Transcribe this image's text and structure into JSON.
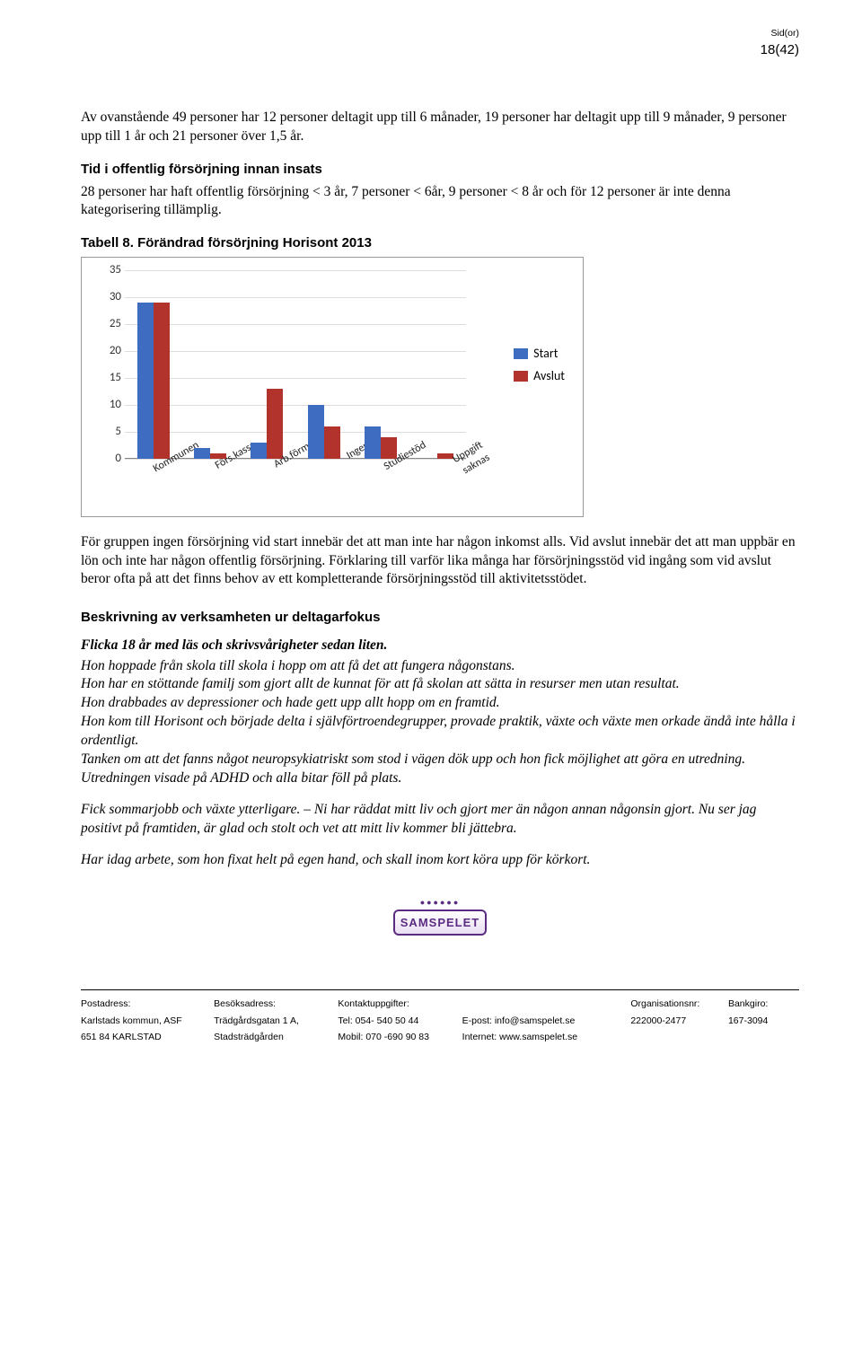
{
  "header": {
    "sidor_label": "Sid(or)",
    "page_num": "18(42)"
  },
  "p1": "Av ovanstående 49 personer har 12 personer deltagit upp till 6 månader, 19 personer har deltagit upp till 9 månader, 9 personer upp till 1 år och 21 personer över 1,5 år.",
  "h1": "Tid i offentlig försörjning innan insats",
  "p2": "28 personer har haft offentlig försörjning < 3 år, 7 personer < 6år, 9 personer < 8 år och för 12 personer är inte denna kategorisering tillämplig.",
  "table_title": "Tabell 8. Förändrad försörjning Horisont 2013",
  "chart": {
    "yticks": [
      0,
      5,
      10,
      15,
      20,
      25,
      30,
      35
    ],
    "ymax": 35,
    "categories": [
      "Kommunen",
      "Förs.kassa",
      "Arb.förm.",
      "Ingen",
      "Studiestöd",
      "Uppgift saknas"
    ],
    "start": [
      29,
      2,
      3,
      10,
      6,
      0
    ],
    "avslut": [
      29,
      1,
      13,
      6,
      4,
      1
    ],
    "colors": {
      "start": "#3d6cc0",
      "avslut": "#b2322c",
      "grid": "#dddddd",
      "border": "#999999"
    },
    "legend": {
      "start": "Start",
      "avslut": "Avslut"
    }
  },
  "p3": "För gruppen ingen försörjning vid start innebär det att man inte har någon inkomst alls. Vid avslut innebär det att man uppbär en lön och inte har någon offentlig försörjning. Förklaring till varför lika många har försörjningsstöd vid ingång som vid avslut beror ofta på att det finns behov av ett kompletterande försörjningsstöd till aktivitetsstödet.",
  "h2": "Beskrivning av verksamheten ur deltagarfokus",
  "it_title": "Flicka 18 år med läs och skrivsvårigheter sedan liten.",
  "it_body1": "Hon hoppade från skola till skola i hopp om att få det att fungera någonstans.\nHon har en stöttande familj som gjort allt de kunnat för att få skolan att sätta in resurser men utan resultat.\nHon drabbades av depressioner och hade gett upp allt hopp om en framtid.\nHon kom till Horisont och började delta i självförtroendegrupper, provade praktik, växte och växte men orkade ändå inte hålla i ordentligt.\nTanken om att det fanns något neuropsykiatriskt som stod i vägen dök upp och hon fick möjlighet att göra en utredning. Utredningen visade på ADHD och alla bitar föll på plats.",
  "it_body2": "Fick sommarjobb och växte ytterligare. – Ni har räddat mitt liv och gjort mer än någon annan någonsin gjort. Nu ser jag positivt på framtiden, är glad och stolt och vet att mitt liv kommer bli jättebra.",
  "it_body3": "Har idag arbete, som hon fixat helt på egen hand, och skall inom kort köra upp för körkort.",
  "logo_text": "SAMSPELET",
  "footer": {
    "headers": [
      "Postadress:",
      "Besöksadress:",
      "Kontaktuppgifter:",
      "",
      "Organisationsnr:",
      "Bankgiro:"
    ],
    "r1": [
      "Karlstads kommun, ASF",
      "Trädgårdsgatan 1 A,",
      "Tel: 054- 540 50 44",
      "E-post: info@samspelet.se",
      "222000-2477",
      "167-3094"
    ],
    "r2": [
      "651 84 KARLSTAD",
      "Stadsträdgården",
      "Mobil: 070 -690 90 83",
      "Internet: www.samspelet.se",
      "",
      ""
    ]
  }
}
